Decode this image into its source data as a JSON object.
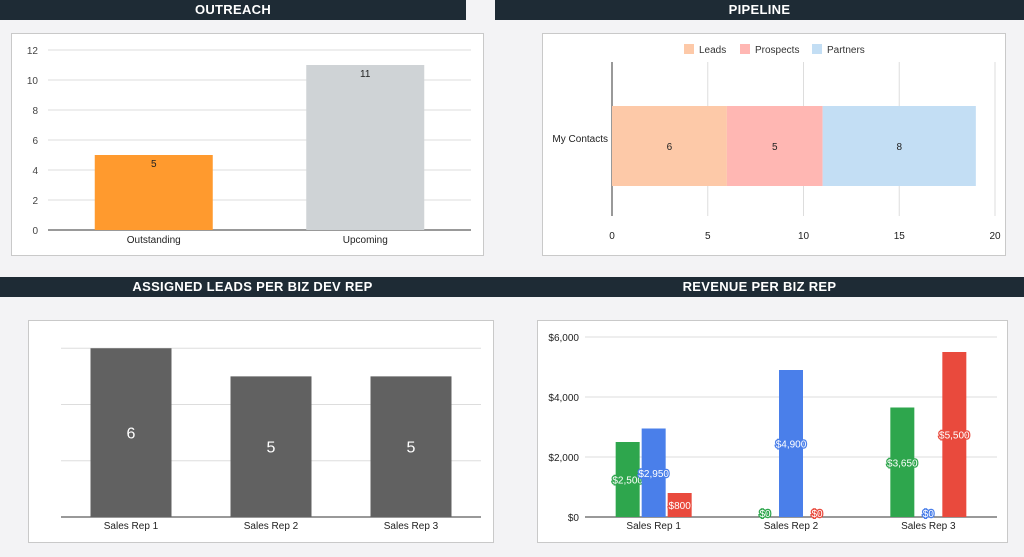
{
  "headers": {
    "outreach": "OUTREACH",
    "pipeline": "PIPELINE",
    "assigned": "ASSIGNED LEADS PER BIZ DEV REP",
    "revenue": "REVENUE PER BIZ REP"
  },
  "chart_data": [
    {
      "id": "outreach",
      "type": "bar",
      "categories": [
        "Outstanding",
        "Upcoming"
      ],
      "values": [
        5,
        11
      ],
      "colors": [
        "#ff9a2e",
        "#cfd3d6"
      ],
      "ylim": [
        0,
        12
      ],
      "yticks": [
        "0",
        "2",
        "4",
        "6",
        "8",
        "10",
        "12"
      ],
      "grid": true
    },
    {
      "id": "pipeline",
      "type": "bar",
      "orientation": "horizontal",
      "stacked": true,
      "categories": [
        "My Contacts"
      ],
      "series": [
        {
          "name": "Leads",
          "values": [
            6
          ],
          "color": "#fdc9a8"
        },
        {
          "name": "Prospects",
          "values": [
            5
          ],
          "color": "#ffb7b3"
        },
        {
          "name": "Partners",
          "values": [
            8
          ],
          "color": "#c3def4"
        }
      ],
      "xlim": [
        0,
        20
      ],
      "xticks": [
        "0",
        "5",
        "10",
        "15",
        "20"
      ],
      "legend": "top",
      "grid": true
    },
    {
      "id": "assigned",
      "type": "bar",
      "categories": [
        "Sales Rep 1",
        "Sales Rep 2",
        "Sales Rep 3"
      ],
      "values": [
        6,
        5,
        5
      ],
      "color": "#616161",
      "ylim": [
        0,
        6.4
      ],
      "grid": true
    },
    {
      "id": "revenue",
      "type": "bar",
      "categories": [
        "Sales Rep 1",
        "Sales Rep 2",
        "Sales Rep 3"
      ],
      "series": [
        {
          "values": [
            2500,
            0,
            3650
          ],
          "labels": [
            "$2,500",
            "$0",
            "$3,650"
          ],
          "color": "#2ea64d"
        },
        {
          "values": [
            2950,
            4900,
            0
          ],
          "labels": [
            "$2,950",
            "$4,900",
            "$0"
          ],
          "color": "#4a7fea"
        },
        {
          "values": [
            800,
            0,
            5500
          ],
          "labels": [
            "$800",
            "$0",
            "$5,500"
          ],
          "color": "#e94a3d"
        }
      ],
      "ylim": [
        0,
        6000
      ],
      "yticks": [
        "$0",
        "$2,000",
        "$4,000",
        "$6,000"
      ],
      "grid": true
    }
  ]
}
